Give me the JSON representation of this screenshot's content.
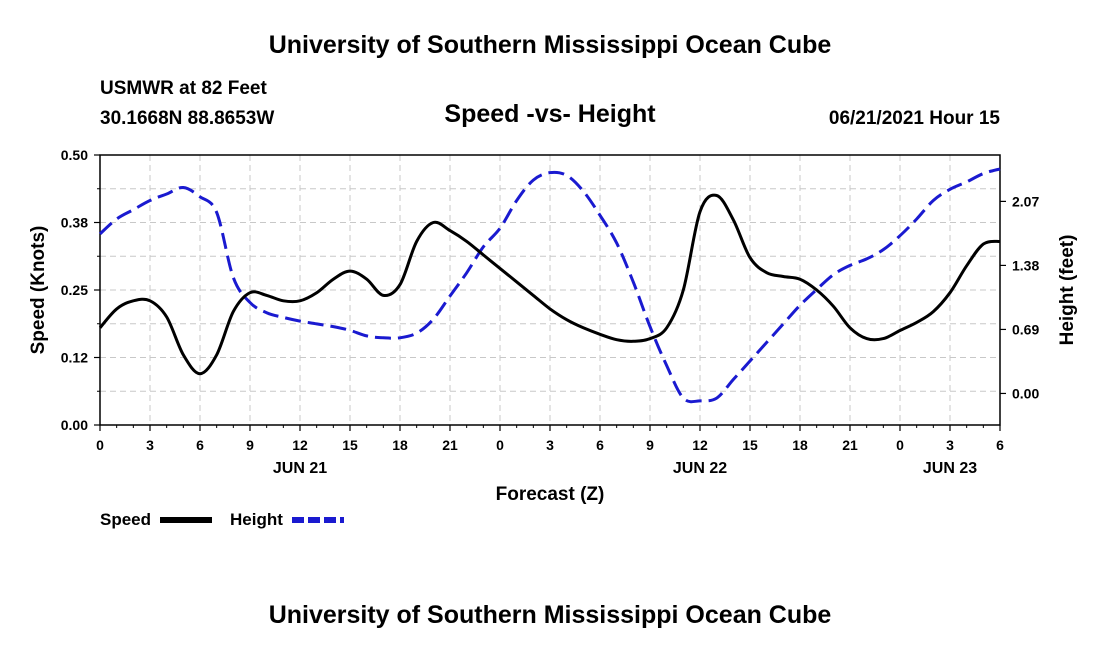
{
  "header": {
    "title": "University of Southern Mississippi Ocean Cube",
    "station": "USMWR at 82 Feet",
    "coords": "30.1668N  88.8653W",
    "subtitle": "Speed -vs- Height",
    "datetime": "06/21/2021 Hour 15"
  },
  "footer": {
    "title": "University of Southern Mississippi Ocean Cube"
  },
  "chart_data": {
    "type": "line",
    "title": "Speed -vs- Height",
    "xlabel": "Forecast (Z)",
    "ylabel": "Speed (Knots)",
    "y2label": "Height (feet)",
    "xlim": [
      0,
      54
    ],
    "ylim": [
      0,
      0.5
    ],
    "y2lim": [
      -0.34,
      2.57
    ],
    "grid": true,
    "x_tick_labels": [
      "0",
      "3",
      "6",
      "9",
      "12",
      "15",
      "18",
      "21",
      "0",
      "3",
      "6",
      "9",
      "12",
      "15",
      "18",
      "21",
      "0",
      "3",
      "6"
    ],
    "y_tick_labels": [
      "0.00",
      "0.12",
      "0.25",
      "0.38",
      "0.50"
    ],
    "y_tick_values": [
      0.0,
      0.125,
      0.25,
      0.375,
      0.5
    ],
    "y2_tick_labels": [
      "0.00",
      "0.69",
      "1.38",
      "2.07"
    ],
    "y2_tick_values": [
      0.0,
      0.69,
      1.38,
      2.07
    ],
    "date_labels": [
      {
        "label": "JUN 21",
        "x": 12
      },
      {
        "label": "JUN 22",
        "x": 36
      },
      {
        "label": "JUN 23",
        "x": 51
      }
    ],
    "series": [
      {
        "name": "Speed",
        "axis": "left",
        "color": "#000000",
        "style": "solid",
        "x": [
          0,
          1,
          2,
          3,
          4,
          5,
          6,
          7,
          8,
          9,
          10,
          11,
          12,
          13,
          14,
          15,
          16,
          17,
          18,
          19,
          20,
          21,
          22,
          23,
          24,
          25,
          26,
          27,
          28,
          29,
          30,
          31,
          32,
          33,
          34,
          35,
          36,
          37,
          38,
          39,
          40,
          41,
          42,
          43,
          44,
          45,
          46,
          47,
          48,
          49,
          50,
          51,
          52,
          53,
          54
        ],
        "values": [
          0.18,
          0.215,
          0.23,
          0.23,
          0.2,
          0.13,
          0.095,
          0.13,
          0.21,
          0.245,
          0.24,
          0.23,
          0.23,
          0.245,
          0.27,
          0.285,
          0.27,
          0.24,
          0.26,
          0.34,
          0.375,
          0.36,
          0.34,
          0.315,
          0.29,
          0.265,
          0.24,
          0.215,
          0.195,
          0.18,
          0.168,
          0.158,
          0.155,
          0.16,
          0.18,
          0.25,
          0.395,
          0.425,
          0.38,
          0.31,
          0.282,
          0.275,
          0.27,
          0.25,
          0.22,
          0.18,
          0.16,
          0.16,
          0.175,
          0.19,
          0.21,
          0.245,
          0.295,
          0.335,
          0.34
        ]
      },
      {
        "name": "Height",
        "axis": "right",
        "color": "#1a1ad0",
        "style": "dashed",
        "x": [
          0,
          1,
          2,
          3,
          4,
          5,
          6,
          7,
          8,
          9,
          10,
          11,
          12,
          13,
          14,
          15,
          16,
          17,
          18,
          19,
          20,
          21,
          22,
          23,
          24,
          25,
          26,
          27,
          28,
          29,
          30,
          31,
          32,
          33,
          34,
          35,
          36,
          37,
          38,
          39,
          40,
          41,
          42,
          43,
          44,
          45,
          46,
          47,
          48,
          49,
          50,
          51,
          52,
          53,
          54
        ],
        "values": [
          1.72,
          1.88,
          1.98,
          2.08,
          2.15,
          2.22,
          2.12,
          1.95,
          1.25,
          0.98,
          0.87,
          0.82,
          0.78,
          0.75,
          0.72,
          0.68,
          0.62,
          0.6,
          0.6,
          0.65,
          0.8,
          1.05,
          1.3,
          1.58,
          1.78,
          2.08,
          2.3,
          2.38,
          2.35,
          2.18,
          1.92,
          1.62,
          1.2,
          0.72,
          0.3,
          -0.05,
          -0.08,
          -0.05,
          0.15,
          0.35,
          0.55,
          0.75,
          0.95,
          1.12,
          1.28,
          1.38,
          1.45,
          1.55,
          1.7,
          1.88,
          2.08,
          2.2,
          2.28,
          2.37,
          2.42
        ]
      }
    ],
    "legend": [
      {
        "label": "Speed",
        "style": "solid",
        "color": "#000000"
      },
      {
        "label": "Height",
        "style": "dashed",
        "color": "#1a1ad0"
      }
    ],
    "legend_position": "bottom-left"
  }
}
